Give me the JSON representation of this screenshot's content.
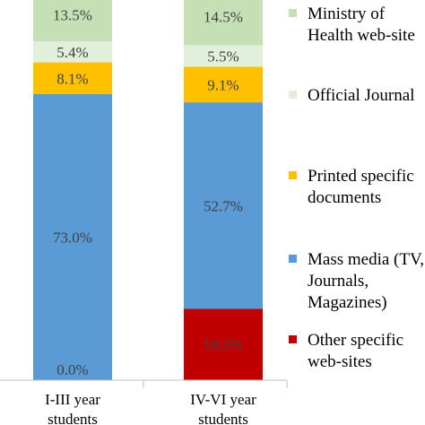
{
  "chart_data": {
    "type": "bar",
    "stacked": true,
    "categories": [
      "I-III year students",
      "IV-VI year students"
    ],
    "series": [
      {
        "name": "Other specific web-sites",
        "color": "#c00000",
        "values": [
          0.0,
          18.2
        ],
        "labels": [
          "0.0%",
          "18.2%"
        ]
      },
      {
        "name": "Mass media (TV, Journals, Magazines)",
        "color": "#5b9bd5",
        "values": [
          73.0,
          52.7
        ],
        "labels": [
          "73.0%",
          "52.7%"
        ]
      },
      {
        "name": "Printed specific documents",
        "color": "#ffc000",
        "values": [
          8.1,
          9.1
        ],
        "labels": [
          "8.1%",
          "9.1%"
        ]
      },
      {
        "name": "Official Journal",
        "color": "#e2efda",
        "values": [
          5.4,
          5.5
        ],
        "labels": [
          "5.4%",
          "5.5%"
        ]
      },
      {
        "name": "Ministry of Health web-site",
        "color": "#c5e0b4",
        "values": [
          13.5,
          14.5
        ],
        "labels": [
          "13.5%",
          "14.5%"
        ]
      }
    ],
    "ylim": [
      0,
      100
    ],
    "legend_position": "right"
  }
}
